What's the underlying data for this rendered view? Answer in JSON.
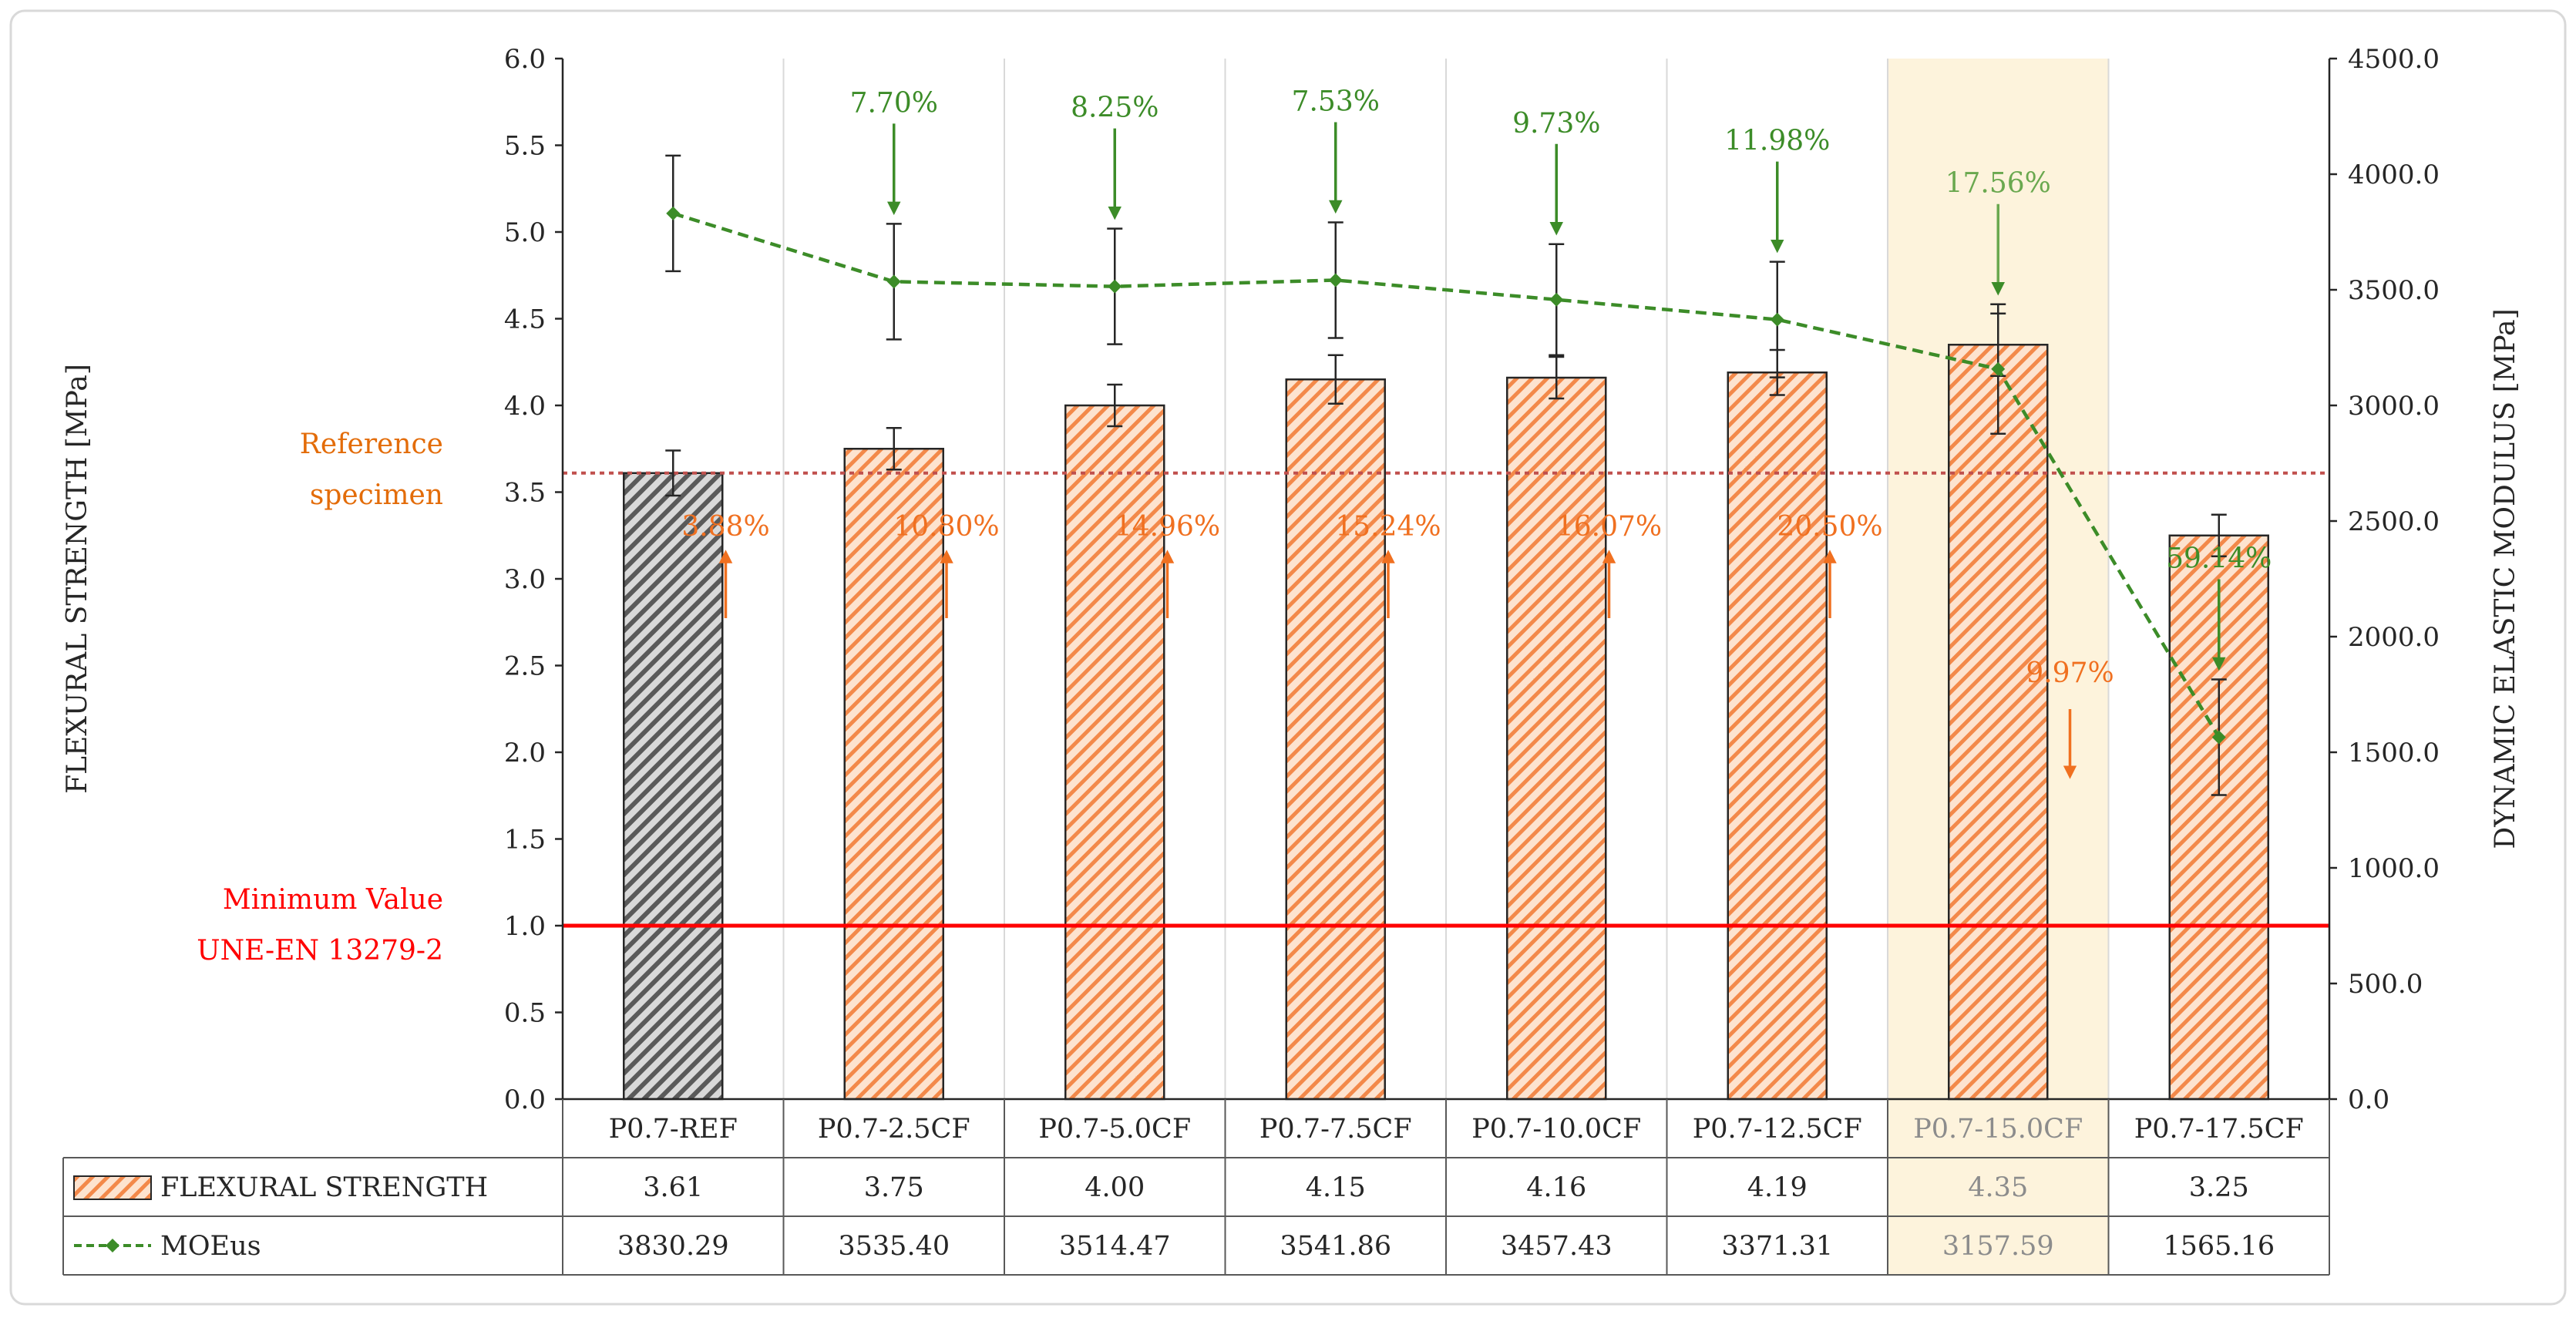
{
  "chart_data": {
    "type": "bar",
    "categories": [
      "P0.7-REF",
      "P0.7-2.5CF",
      "P0.7-5.0CF",
      "P0.7-7.5CF",
      "P0.7-10.0CF",
      "P0.7-12.5CF",
      "P0.7-15.0CF",
      "P0.7-17.5CF"
    ],
    "highlight_category": "P0.7-15.0CF",
    "series": [
      {
        "name": "FLEXURAL STRENGTH",
        "type": "bar",
        "axis": "left",
        "values": [
          3.61,
          3.75,
          4.0,
          4.15,
          4.16,
          4.19,
          4.35,
          3.25
        ],
        "value_labels": [
          "3.61",
          "3.75",
          "4.00",
          "4.15",
          "4.16",
          "4.19",
          "4.35",
          "3.25"
        ],
        "error": [
          0.13,
          0.12,
          0.12,
          0.14,
          0.12,
          0.13,
          0.18,
          0.12
        ],
        "color": "#f08040",
        "reference_color": "#595959"
      },
      {
        "name": "MOEus",
        "type": "line",
        "axis": "right",
        "values": [
          3830.29,
          3535.4,
          3514.47,
          3541.86,
          3457.43,
          3371.31,
          3157.59,
          1565.16
        ],
        "value_labels": [
          "3830.29",
          "3535.40",
          "3514.47",
          "3541.86",
          "3457.43",
          "3371.31",
          "3157.59",
          "1565.16"
        ],
        "error": [
          250,
          250,
          250,
          250,
          240,
          250,
          280,
          250
        ],
        "color": "#3c8c28"
      }
    ],
    "left_axis": {
      "label": "FLEXURAL STRENGTH [MPa]",
      "ylim": [
        0,
        6
      ],
      "ticks": [
        "0.0",
        "0.5",
        "1.0",
        "1.5",
        "2.0",
        "2.5",
        "3.0",
        "3.5",
        "4.0",
        "4.5",
        "5.0",
        "5.5",
        "6.0"
      ]
    },
    "right_axis": {
      "label": "DYNAMIC ELASTIC MODULUS [MPa]",
      "ylim": [
        0,
        4500
      ],
      "ticks": [
        "0.0",
        "500.0",
        "1000.0",
        "1500.0",
        "2000.0",
        "2500.0",
        "3000.0",
        "3500.0",
        "4000.0",
        "4500.0"
      ]
    },
    "reference_line": {
      "value": 3.61,
      "label_line1": "Reference",
      "label_line2": "specimen",
      "color": "#c0504d"
    },
    "minimum_line": {
      "value": 1.0,
      "label_line1": "Minimum Value",
      "label_line2": "UNE-EN 13279-2",
      "color": "#ff0000"
    },
    "strength_change_annotations": [
      {
        "between": [
          0,
          1
        ],
        "text": "3.88%",
        "direction": "up"
      },
      {
        "between": [
          1,
          2
        ],
        "text": "10.80%",
        "direction": "up"
      },
      {
        "between": [
          2,
          3
        ],
        "text": "14.96%",
        "direction": "up"
      },
      {
        "between": [
          3,
          4
        ],
        "text": "15.24%",
        "direction": "up"
      },
      {
        "between": [
          4,
          5
        ],
        "text": "16.07%",
        "direction": "up"
      },
      {
        "between": [
          5,
          6
        ],
        "text": "20.50%",
        "direction": "up"
      },
      {
        "between": [
          6,
          7
        ],
        "text": "9.97%",
        "direction": "down"
      }
    ],
    "moe_change_annotations": [
      {
        "category": 1,
        "text": "7.70%",
        "direction": "down"
      },
      {
        "category": 2,
        "text": "8.25%",
        "direction": "down"
      },
      {
        "category": 3,
        "text": "7.53%",
        "direction": "down"
      },
      {
        "category": 4,
        "text": "9.73%",
        "direction": "down"
      },
      {
        "category": 5,
        "text": "11.98%",
        "direction": "down"
      },
      {
        "category": 6,
        "text": "17.56%",
        "direction": "down"
      },
      {
        "category": 7,
        "text": "59.14%",
        "direction": "down"
      }
    ],
    "table_row_labels": [
      "FLEXURAL STRENGTH",
      "MOEus"
    ]
  }
}
